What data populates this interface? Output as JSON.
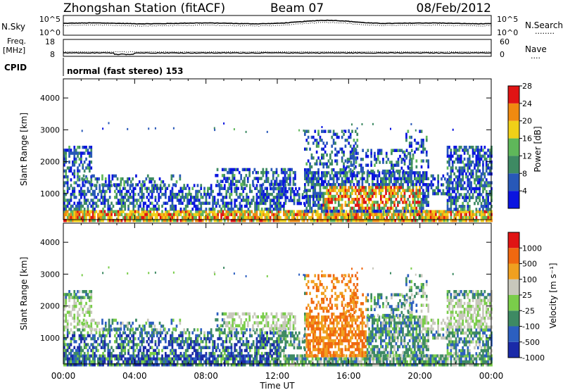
{
  "header": {
    "station": "Zhongshan Station (fitACF)",
    "beam": "Beam 07",
    "date": "08/Feb/2012"
  },
  "strip_labels": {
    "nsky": "N.Sky",
    "nsearch": "N.Search",
    "nsearch_dots": "........",
    "freq_line1": "Freq.",
    "freq_line2": "[MHz]",
    "nave": "Nave",
    "nave_dots": "....",
    "cpid": "CPID",
    "cpid_text": "normal (fast stereo) 153",
    "noise_ticks_left": [
      "10^5",
      "10^0"
    ],
    "noise_ticks_right": [
      "10^5",
      "10^0"
    ],
    "freq_ticks": [
      "18",
      "8"
    ],
    "nave_ticks": [
      "60",
      "0"
    ]
  },
  "power_colorbar": {
    "label": "Power [dB]",
    "ticks": [
      "4",
      "8",
      "12",
      "16",
      "20",
      "24",
      "28"
    ],
    "colors": [
      "#0a14e0",
      "#2858b8",
      "#3e8a63",
      "#5fb75a",
      "#f0d018",
      "#f08a10",
      "#e01414"
    ]
  },
  "velocity_colorbar": {
    "label": "Velocity [m s⁻¹]",
    "ticks": [
      "1000",
      "500",
      "100",
      "25",
      "-25",
      "-100",
      "-500",
      "-1000"
    ],
    "colors": [
      "#1a2aa8",
      "#2c5fc0",
      "#3e8a63",
      "#7acd4a",
      "#c8c8bc",
      "#f0a020",
      "#f06810",
      "#e01414"
    ]
  },
  "chart_data": [
    {
      "type": "line",
      "title": "Zhongshan Station (fitACF)",
      "series": [
        {
          "name": "N.Sky"
        },
        {
          "name": "N.Search"
        }
      ],
      "ylim_log10": [
        0,
        5
      ],
      "x": [
        "00:00",
        "06:00",
        "12:00",
        "15:00",
        "18:00",
        "24:00"
      ],
      "y_log10": [
        3.0,
        3.0,
        3.2,
        3.8,
        3.2,
        3.0
      ]
    },
    {
      "type": "line",
      "series": [
        {
          "name": "Freq. [MHz]"
        },
        {
          "name": "Nave"
        }
      ],
      "freq_ylim": [
        8,
        18
      ],
      "nave_ylim": [
        0,
        60
      ],
      "x": [
        "00:00",
        "12:00",
        "24:00"
      ],
      "freq_values": [
        10,
        10,
        10
      ]
    },
    {
      "type": "heatmap",
      "quantity": "Power",
      "units": "dB",
      "ylabel": "Slant Range [km]",
      "xlabel": "Time UT",
      "yticks": [
        1000,
        2000,
        3000,
        4000
      ],
      "ylim": [
        180,
        4600
      ],
      "xticks": [
        "00:00",
        "04:00",
        "08:00",
        "12:00",
        "16:00",
        "20:00",
        "00:00"
      ],
      "xlim_hours": [
        0,
        24
      ],
      "value_range": [
        0,
        30
      ]
    },
    {
      "type": "heatmap",
      "quantity": "Velocity",
      "units": "m s-1",
      "ylabel": "Slant Range [km]",
      "xlabel": "Time UT",
      "yticks": [
        1000,
        2000,
        3000,
        4000
      ],
      "ylim": [
        180,
        4600
      ],
      "xticks": [
        "00:00",
        "04:00",
        "08:00",
        "12:00",
        "16:00",
        "20:00",
        "00:00"
      ],
      "xlim_hours": [
        0,
        24
      ],
      "value_range": [
        -1000,
        1000
      ]
    }
  ],
  "axes": {
    "ylabel": "Slant Range [km]",
    "xlabel": "Time UT",
    "yticks": [
      "1000",
      "2000",
      "3000",
      "4000"
    ],
    "xticks": [
      "00:00",
      "04:00",
      "08:00",
      "12:00",
      "16:00",
      "20:00",
      "00:00"
    ]
  }
}
